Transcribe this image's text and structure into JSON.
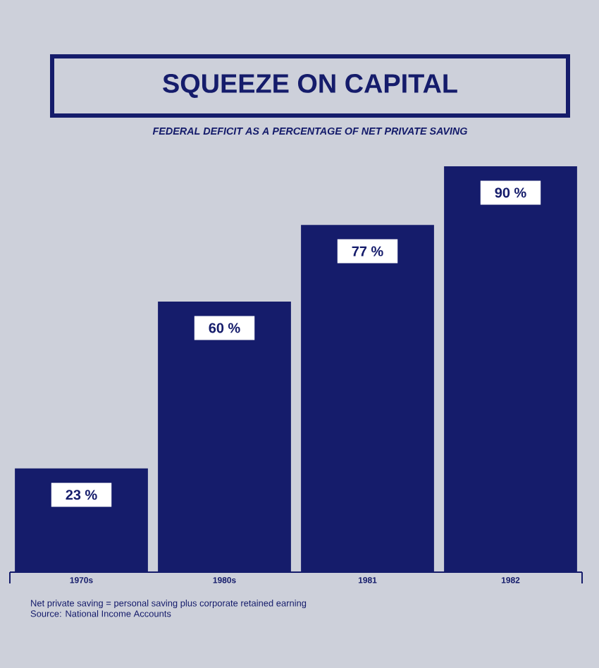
{
  "chart_data": {
    "type": "bar",
    "title": "SQUEEZE ON CAPITAL",
    "subtitle": "FEDERAL DEFICIT AS A PERCENTAGE OF NET PRIVATE SAVING",
    "categories": [
      "1970s",
      "1980s",
      "1981",
      "1982"
    ],
    "values": [
      23,
      60,
      77,
      90
    ],
    "value_labels": [
      "23 %",
      "60 %",
      "77 %",
      "90 %"
    ],
    "color": "#151c6b",
    "tick_labels": "x",
    "annotations": [
      "Net private saving = personal saving plus corporate retained earning",
      "Source: National Income Accounts"
    ]
  }
}
